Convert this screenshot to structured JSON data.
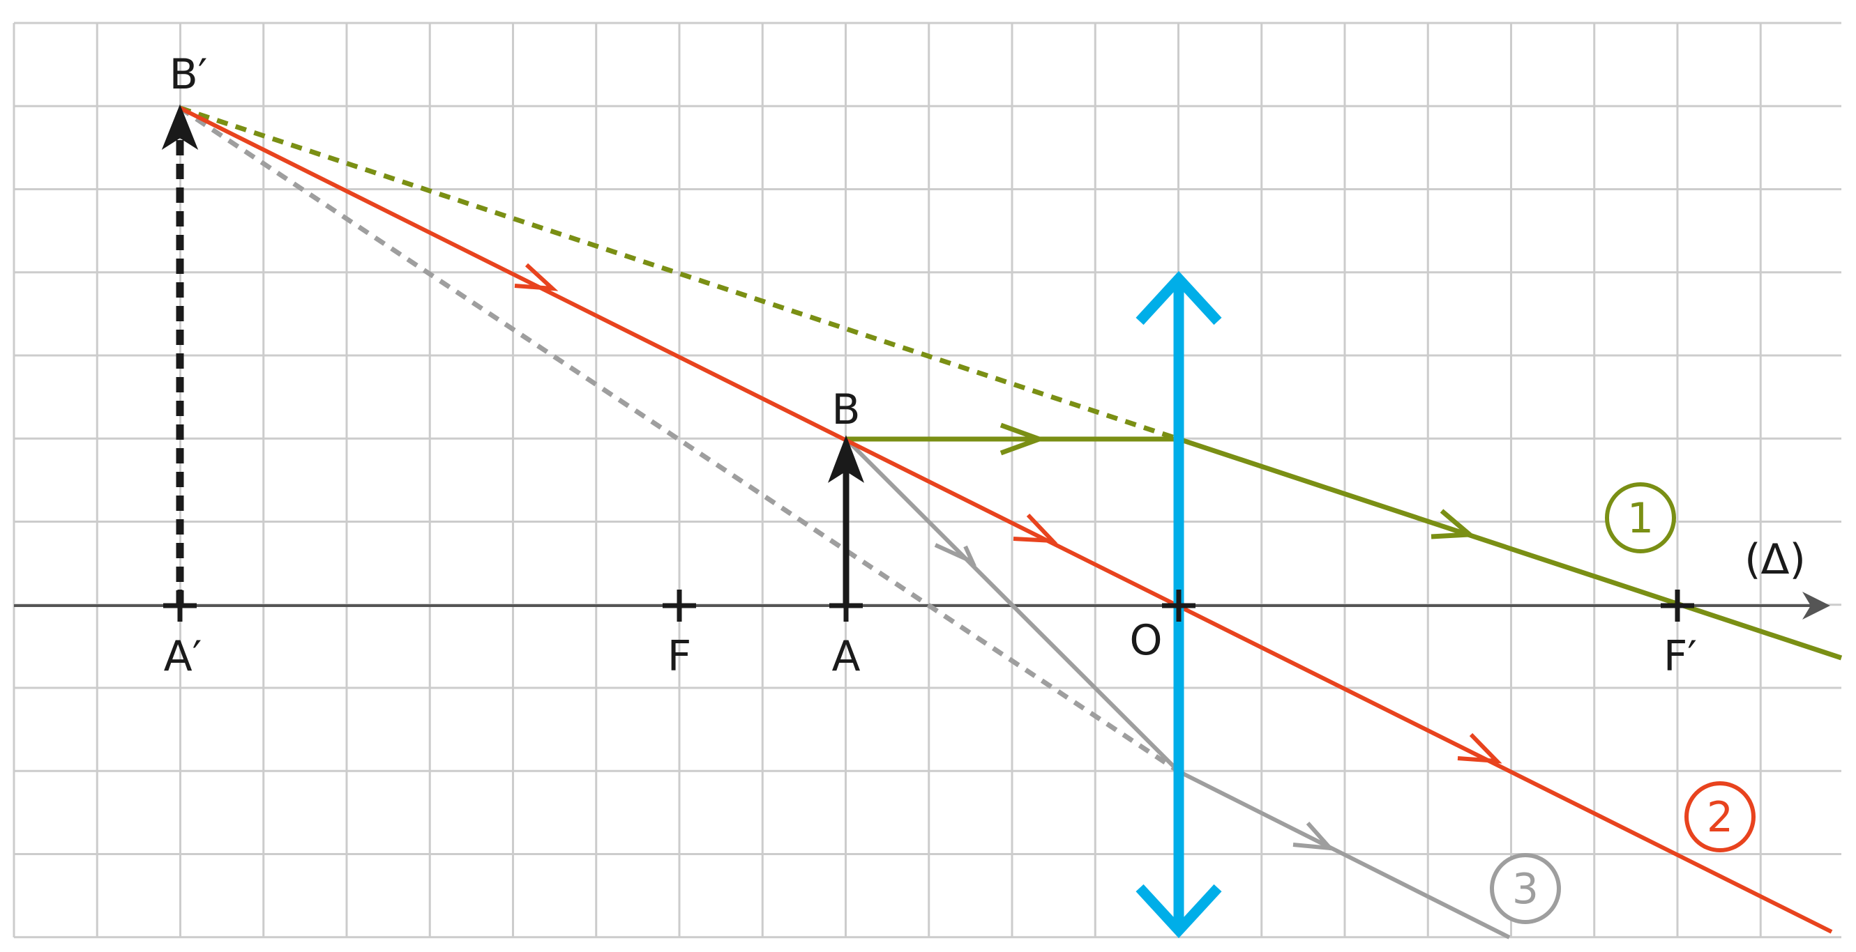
{
  "points": {
    "B_prime": "B′",
    "A_prime": "A′",
    "F": "F",
    "A": "A",
    "B": "B",
    "O": "O",
    "F_prime": "F′"
  },
  "axis_label": "(Δ)",
  "rays": [
    {
      "number": "1",
      "color": "#7a8f14"
    },
    {
      "number": "2",
      "color": "#e8431e"
    },
    {
      "number": "3",
      "color": "#9e9e9e"
    }
  ],
  "colors": {
    "lens": "#00aee8",
    "grid": "#cccccc",
    "axis": "#555555",
    "object": "#1a1a1a",
    "image": "#1a1a1a"
  }
}
